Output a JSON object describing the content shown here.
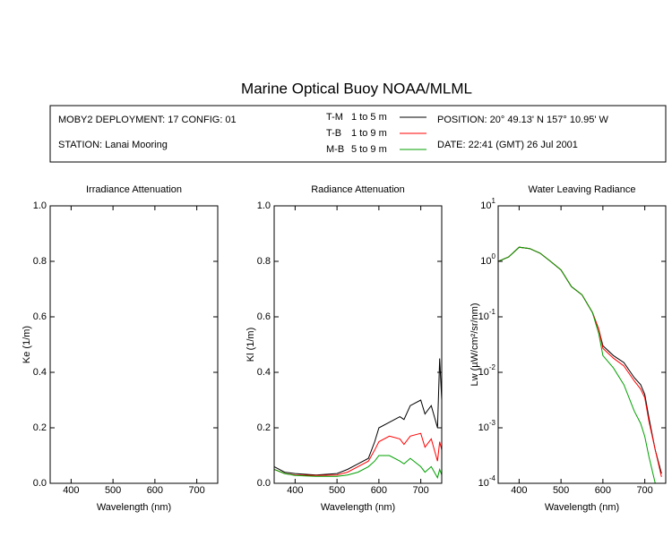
{
  "header": {
    "title": "Marine Optical Buoy NOAA/MLML",
    "deployment": "MOBY2 DEPLOYMENT: 17 CONFIG: 01",
    "station": "STATION: Lanai Mooring",
    "position": "POSITION: 20° 49.13' N   157° 10.95' W",
    "date": "DATE: 22:41 (GMT) 26 Jul 2001"
  },
  "chart_data": [
    {
      "type": "line",
      "title": "Irradiance Attenuation",
      "x_label": "Wavelength (nm)",
      "y_label": "Ke  (1/m)",
      "xlim": [
        350,
        750
      ],
      "xticks": [
        400,
        500,
        600,
        700
      ],
      "ylim": [
        0,
        1
      ],
      "yticks": [
        {
          "value": 0,
          "label": "0.0"
        },
        0.2,
        0.4,
        0.6,
        0.8,
        {
          "value": 1,
          "label": "1.0"
        }
      ],
      "x": [],
      "series": []
    },
    {
      "type": "line",
      "title": "Radiance Attenuation",
      "x_label": "Wavelength (nm)",
      "y_label": "Kl  (1/m)",
      "xlim": [
        350,
        750
      ],
      "xticks": [
        400,
        500,
        600,
        700
      ],
      "ylim": [
        0,
        1
      ],
      "yticks": [
        {
          "value": 0,
          "label": "0.0"
        },
        0.2,
        0.4,
        0.6,
        0.8,
        {
          "value": 1,
          "label": "1.0"
        }
      ],
      "x": [
        350,
        375,
        400,
        450,
        500,
        525,
        550,
        575,
        590,
        600,
        625,
        650,
        660,
        675,
        700,
        710,
        725,
        740,
        745,
        750
      ],
      "series": [
        {
          "name": "T-M",
          "depth": "1 to 5  m",
          "color": "#000000",
          "values": [
            0.06,
            0.04,
            0.035,
            0.03,
            0.035,
            0.05,
            0.07,
            0.09,
            0.15,
            0.2,
            0.22,
            0.24,
            0.23,
            0.28,
            0.3,
            0.25,
            0.28,
            0.2,
            0.45,
            0.3
          ]
        },
        {
          "name": "T-B",
          "depth": "1 to 9  m",
          "color": "#ff0000",
          "values": [
            0.05,
            0.035,
            0.03,
            0.028,
            0.03,
            0.04,
            0.06,
            0.08,
            0.12,
            0.15,
            0.17,
            0.16,
            0.14,
            0.17,
            0.18,
            0.13,
            0.16,
            0.08,
            0.15,
            0.12
          ]
        },
        {
          "name": "M-B",
          "depth": "5 to 9  m",
          "color": "#00a000",
          "values": [
            0.05,
            0.035,
            0.028,
            0.025,
            0.025,
            0.03,
            0.04,
            0.06,
            0.08,
            0.1,
            0.1,
            0.08,
            0.07,
            0.09,
            0.06,
            0.04,
            0.06,
            0.02,
            0.05,
            0.03
          ]
        }
      ]
    },
    {
      "type": "line",
      "title": "Water Leaving Radiance",
      "x_label": "Wavelength (nm)",
      "y_label": "Lw  (µW/cm²/sr/nm)",
      "log_y": true,
      "xlim": [
        350,
        750
      ],
      "xticks": [
        400,
        500,
        600,
        700
      ],
      "ylim": [
        0.0001,
        10
      ],
      "yticks": [
        {
          "value": 10,
          "label": "10",
          "sup": "1"
        },
        {
          "value": 1,
          "label": "10",
          "sup": "0"
        },
        {
          "value": 0.1,
          "label": "10",
          "sup": "-1"
        },
        {
          "value": 0.01,
          "label": "10",
          "sup": "-2"
        },
        {
          "value": 0.001,
          "label": "10",
          "sup": "-3"
        },
        {
          "value": 0.0001,
          "label": "10",
          "sup": "-4"
        }
      ],
      "x": [
        350,
        375,
        400,
        425,
        450,
        475,
        500,
        525,
        550,
        575,
        590,
        600,
        625,
        650,
        675,
        690,
        700,
        710,
        725,
        740
      ],
      "series": [
        {
          "name": "T-M",
          "color": "#000000",
          "values": [
            1.0,
            1.2,
            1.8,
            1.7,
            1.4,
            1.0,
            0.7,
            0.35,
            0.25,
            0.12,
            0.06,
            0.03,
            0.02,
            0.015,
            0.008,
            0.006,
            0.004,
            0.0015,
            0.0004,
            0.00015
          ]
        },
        {
          "name": "T-B",
          "color": "#ff0000",
          "values": [
            1.0,
            1.2,
            1.8,
            1.7,
            1.4,
            1.0,
            0.7,
            0.35,
            0.25,
            0.12,
            0.06,
            0.027,
            0.018,
            0.013,
            0.007,
            0.005,
            0.0035,
            0.0013,
            0.0004,
            0.00013
          ]
        },
        {
          "name": "M-B",
          "color": "#00a000",
          "values": [
            1.0,
            1.2,
            1.8,
            1.7,
            1.4,
            1.0,
            0.7,
            0.35,
            0.25,
            0.12,
            0.05,
            0.02,
            0.012,
            0.006,
            0.002,
            0.0012,
            0.0007,
            0.0003,
            0.0001,
            null
          ]
        }
      ]
    }
  ]
}
